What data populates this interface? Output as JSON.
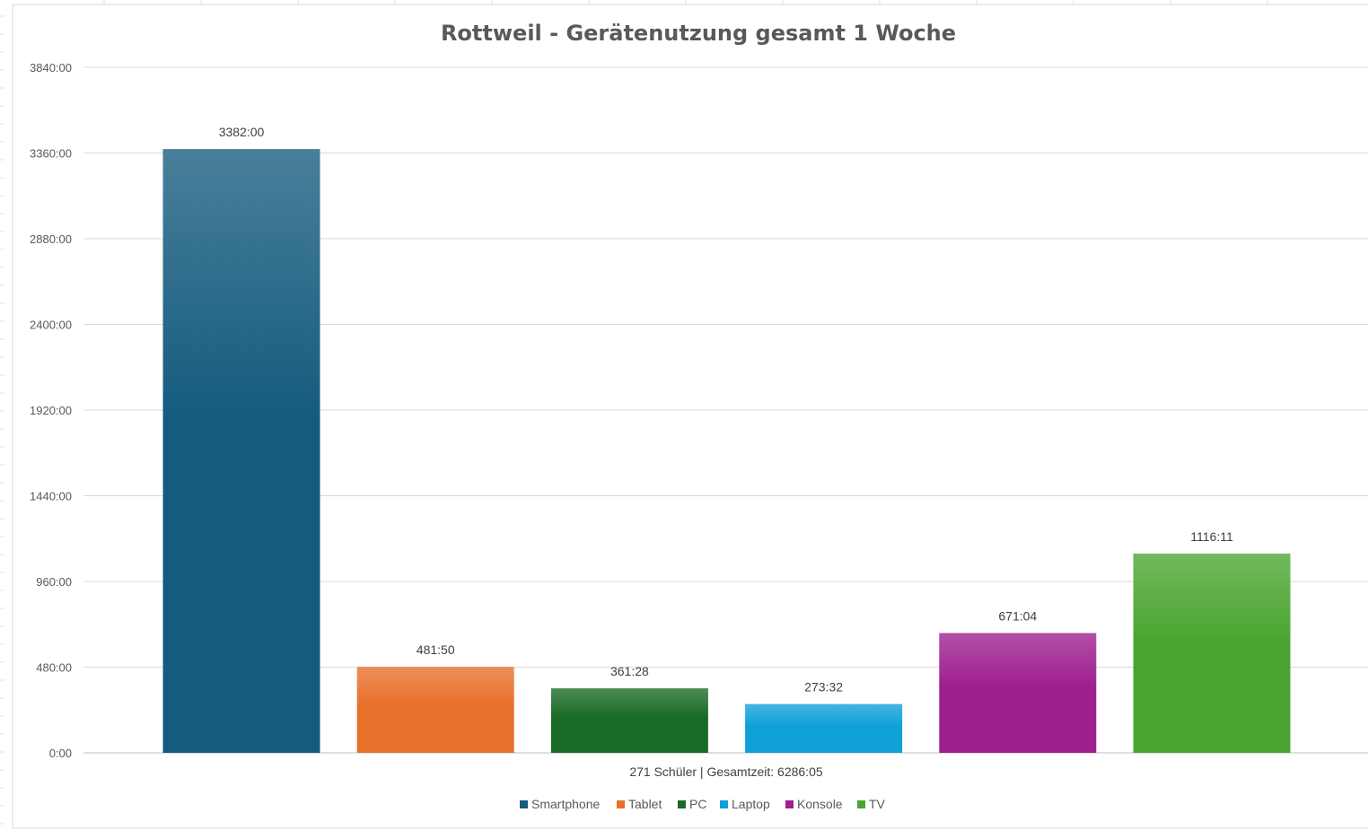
{
  "chart_data": {
    "type": "bar",
    "title": "Rottweil - Gerätenutzung gesamt 1 Woche",
    "xlabel": "271 Schüler | Gesamtzeit: 6286:05",
    "ylabel": "",
    "categories": [
      "Smartphone",
      "Tablet",
      "PC",
      "Laptop",
      "Konsole",
      "TV"
    ],
    "values_minutes": [
      202920,
      28910,
      21688,
      16412,
      40264,
      66971
    ],
    "data_labels": [
      "3382:00",
      "481:50",
      "361:28",
      "273:32",
      "671:04",
      "1116:11"
    ],
    "ylim_minutes": [
      0,
      230400
    ],
    "yticks_minutes": [
      0,
      28800,
      57600,
      86400,
      115200,
      144000,
      172800,
      201600,
      230400
    ],
    "ytick_labels": [
      "0:00",
      "480:00",
      "960:00",
      "1440:00",
      "1920:00",
      "2400:00",
      "2880:00",
      "3360:00",
      "3840:00"
    ],
    "legend": [
      "Smartphone",
      "Tablet",
      "PC",
      "Laptop",
      "Konsole",
      "TV"
    ],
    "legend_position": "bottom",
    "grid": true,
    "colors": [
      "#145B7E",
      "#E8702A",
      "#1A6B25",
      "#10A0D8",
      "#9E1F8E",
      "#49A52F"
    ]
  }
}
